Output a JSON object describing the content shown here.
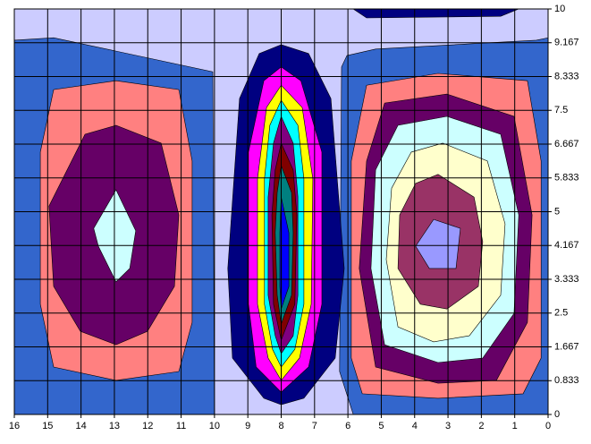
{
  "chart_data": {
    "type": "contour",
    "xlim": [
      16,
      0
    ],
    "ylim": [
      0,
      10
    ],
    "xticks": [
      0,
      1,
      2,
      3,
      4,
      5,
      6,
      7,
      8,
      9,
      10,
      11,
      12,
      13,
      14,
      15,
      16
    ],
    "yticks": [
      0,
      0.833,
      1.667,
      2.5,
      3.333,
      4.167,
      5,
      5.833,
      6.667,
      7.5,
      8.333,
      9.167,
      10
    ],
    "grid": true,
    "regions": [
      {
        "color": "#ccccff",
        "x": [
          16,
          0,
          0,
          16
        ],
        "y": [
          0,
          0,
          10,
          10
        ]
      },
      {
        "color": "#3366cc",
        "x": [
          16,
          14.82,
          10.05,
          10,
          16
        ],
        "y": [
          9.23,
          9.29,
          8.45,
          0,
          0
        ]
      },
      {
        "color": "#3366cc",
        "x": [
          6.03,
          5.17,
          0.35,
          0,
          0,
          5.84,
          6.25,
          6.19
        ],
        "y": [
          8.85,
          9.01,
          9.23,
          9.29,
          0,
          0,
          1.06,
          8.57
        ]
      },
      {
        "color": "#000080",
        "x": [
          5.84,
          0.88,
          1.42,
          5.44
        ],
        "y": [
          10,
          10,
          9.82,
          9.78
        ]
      },
      {
        "color": "#ff8080",
        "x": [
          12.95,
          11.07,
          10.67,
          10.67,
          11.07,
          12.95,
          14.82,
          15.22,
          15.22,
          14.82
        ],
        "y": [
          8.23,
          8.01,
          6.25,
          2.27,
          1.06,
          0.84,
          1.17,
          2.72,
          6.47,
          8.01
        ]
      },
      {
        "color": "#660066",
        "x": [
          12.95,
          11.6,
          11.07,
          11.2,
          12.01,
          12.95,
          14.02,
          14.82,
          14.96,
          13.88
        ],
        "y": [
          7.13,
          6.69,
          4.92,
          3.16,
          2.05,
          1.72,
          2.05,
          3.16,
          5.14,
          6.91
        ]
      },
      {
        "color": "#ccffff",
        "x": [
          12.95,
          12.36,
          12.54,
          12.95,
          13.48,
          13.62
        ],
        "y": [
          5.54,
          4.53,
          3.6,
          3.27,
          4.15,
          4.59
        ]
      },
      {
        "color": "#000080",
        "x": [
          8,
          7.18,
          6.51,
          6.11,
          6.38,
          7.32,
          8,
          8.52,
          9.46,
          9.6,
          9.25,
          8.66
        ],
        "y": [
          9.12,
          8.9,
          7.79,
          3.6,
          1.39,
          0.4,
          0.24,
          0.4,
          1.39,
          3.6,
          7.79,
          8.9
        ]
      },
      {
        "color": "#ff00ff",
        "x": [
          8,
          7.41,
          6.78,
          6.78,
          7.18,
          8,
          8.75,
          8.98,
          8.98,
          8.52
        ],
        "y": [
          8.57,
          8.23,
          6.47,
          2.72,
          1.17,
          0.55,
          1.17,
          2.72,
          6.47,
          8.23
        ]
      },
      {
        "color": "#ffff00",
        "x": [
          8,
          7.37,
          7.05,
          7.1,
          7.45,
          8,
          8.39,
          8.71,
          8.71,
          8.44
        ],
        "y": [
          8.12,
          7.57,
          5.81,
          2.72,
          1.39,
          0.84,
          1.39,
          2.72,
          5.81,
          7.57
        ]
      },
      {
        "color": "#00ffff",
        "x": [
          8,
          7.5,
          7.32,
          7.32,
          7.59,
          8,
          8.26,
          8.5,
          8.5,
          8.34
        ],
        "y": [
          7.75,
          7.13,
          5.81,
          2.72,
          1.61,
          1.17,
          1.61,
          2.72,
          5.81,
          7.13
        ]
      },
      {
        "color": "#800080",
        "x": [
          8,
          7.64,
          7.5,
          7.5,
          7.64,
          8,
          8.18,
          8.39,
          8.39,
          8.23
        ],
        "y": [
          7.35,
          6.69,
          5.36,
          2.94,
          1.94,
          1.5,
          1.94,
          2.94,
          5.36,
          6.69
        ]
      },
      {
        "color": "#800000",
        "x": [
          8,
          7.64,
          7.53,
          7.59,
          8,
          8.23,
          8.28,
          8.18
        ],
        "y": [
          6.69,
          6.03,
          4.92,
          2.72,
          1.83,
          2.72,
          4.92,
          6.03
        ]
      },
      {
        "color": "#008080",
        "x": [
          8,
          7.69,
          7.64,
          7.69,
          8,
          8.12,
          8.18,
          8.12
        ],
        "y": [
          6.14,
          5.47,
          4.48,
          2.94,
          2.23,
          2.94,
          4.48,
          5.47
        ]
      },
      {
        "color": "#0000ff",
        "x": [
          8,
          7.77,
          7.77,
          8,
          8.04,
          8.04
        ],
        "y": [
          5.36,
          4.48,
          3.16,
          2.6,
          3.16,
          4.48
        ]
      },
      {
        "color": "#ff8080",
        "x": [
          3.3,
          0.62,
          0.21,
          0.21,
          0.75,
          3.3,
          5.57,
          5.9,
          5.9,
          5.44
        ],
        "y": [
          8.41,
          8.23,
          6.25,
          1.39,
          0.51,
          0.4,
          0.51,
          1.39,
          6.25,
          8.12
        ]
      },
      {
        "color": "#660066",
        "x": [
          3.03,
          1.02,
          0.48,
          0.62,
          1.55,
          3.3,
          5.17,
          5.66,
          5.44,
          4.9
        ],
        "y": [
          7.9,
          7.35,
          4.92,
          2.27,
          0.84,
          0.77,
          1.17,
          3.6,
          6.25,
          7.68
        ]
      },
      {
        "color": "#ccffff",
        "x": [
          3.03,
          1.42,
          0.88,
          1.02,
          1.96,
          3.3,
          4.9,
          5.31,
          5.17,
          4.5
        ],
        "y": [
          7.35,
          6.91,
          4.92,
          2.49,
          1.39,
          1.28,
          1.72,
          3.6,
          6.03,
          7.13
        ]
      },
      {
        "color": "#ffffcc",
        "x": [
          3.16,
          1.82,
          1.29,
          1.42,
          2.36,
          3.43,
          4.5,
          4.85,
          4.69,
          4.1
        ],
        "y": [
          6.69,
          6.25,
          4.7,
          2.94,
          1.94,
          1.79,
          2.16,
          3.82,
          5.58,
          6.47
        ]
      },
      {
        "color": "#993366",
        "x": [
          3.3,
          2.22,
          1.96,
          2.09,
          3.03,
          3.83,
          4.5,
          4.45,
          3.97
        ],
        "y": [
          5.92,
          5.36,
          4.26,
          3.16,
          2.6,
          2.72,
          3.6,
          4.92,
          5.7
        ]
      },
      {
        "color": "#9999ff",
        "x": [
          3.43,
          2.63,
          2.76,
          3.56,
          3.97
        ],
        "y": [
          4.81,
          4.59,
          3.6,
          3.6,
          4.15
        ]
      }
    ]
  }
}
